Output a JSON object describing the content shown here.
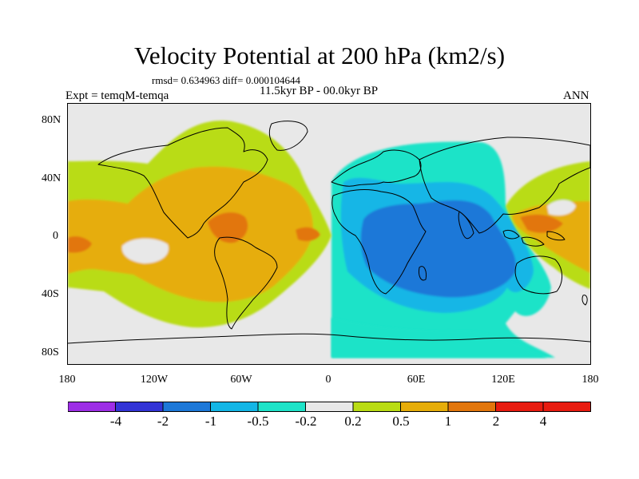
{
  "title": "Velocity Potential at 200 hPa (km2/s)",
  "stats_line": "rmsd= 0.634963  diff= 0.000104644",
  "period": "11.5kyr BP - 00.0kyr BP",
  "experiment": "Expt = temqM-temqa",
  "season": "ANN",
  "y_ticks": [
    "80N",
    "40N",
    "0",
    "40S",
    "80S"
  ],
  "x_ticks": [
    "180",
    "120W",
    "60W",
    "0",
    "60E",
    "120E",
    "180"
  ],
  "colorbar": {
    "labels": [
      "-4",
      "-2",
      "-1",
      "-0.5",
      "-0.2",
      "0.2",
      "0.5",
      "1",
      "2",
      "4"
    ],
    "colors": [
      "#9d2ee6",
      "#3334d6",
      "#1d78d8",
      "#14b6e6",
      "#1ee3c8",
      "#e8e8e8",
      "#b9dc14",
      "#e6ad0a",
      "#e2760c",
      "#e81c10"
    ]
  }
}
